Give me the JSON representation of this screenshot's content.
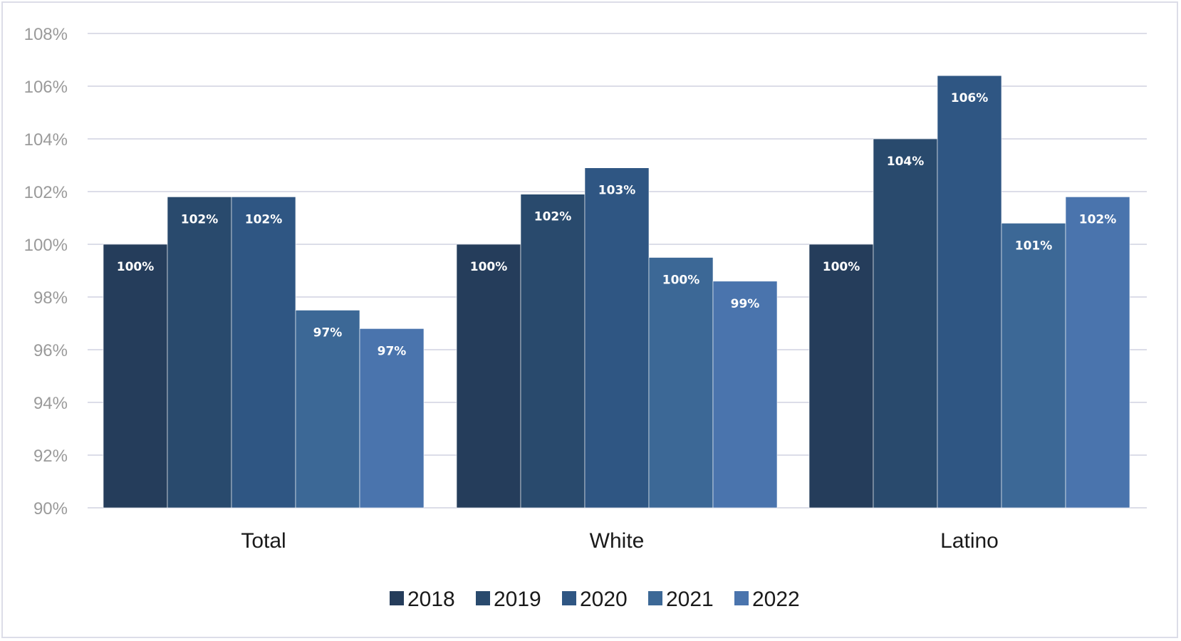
{
  "chart_data": {
    "type": "bar",
    "categories": [
      "Total",
      "White",
      "Latino"
    ],
    "series": [
      {
        "name": "2018",
        "values": [
          100.0,
          100.0,
          100.0
        ],
        "labels": [
          "100%",
          "100%",
          "100%"
        ],
        "color": "#253d5b"
      },
      {
        "name": "2019",
        "values": [
          101.8,
          101.9,
          104.0
        ],
        "labels": [
          "102%",
          "102%",
          "104%"
        ],
        "color": "#294a6d"
      },
      {
        "name": "2020",
        "values": [
          101.8,
          102.9,
          106.4
        ],
        "labels": [
          "102%",
          "103%",
          "106%"
        ],
        "color": "#2f5683"
      },
      {
        "name": "2021",
        "values": [
          97.5,
          99.5,
          100.8
        ],
        "labels": [
          "97%",
          "100%",
          "101%"
        ],
        "color": "#3c6896"
      },
      {
        "name": "2022",
        "values": [
          96.8,
          98.6,
          101.8
        ],
        "labels": [
          "97%",
          "99%",
          "102%"
        ],
        "color": "#4a74ad"
      }
    ],
    "ylim": [
      90,
      108
    ],
    "yticks": [
      "90%",
      "92%",
      "94%",
      "96%",
      "98%",
      "100%",
      "102%",
      "104%",
      "106%",
      "108%"
    ],
    "grid": true,
    "legend_position": "bottom",
    "title": "",
    "xlabel": "",
    "ylabel": ""
  }
}
